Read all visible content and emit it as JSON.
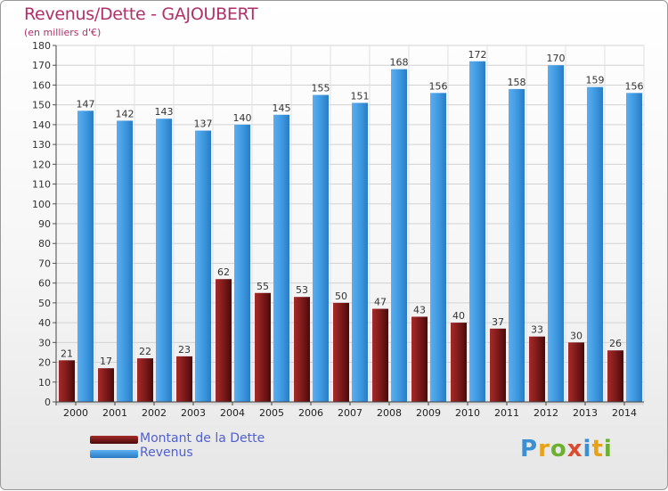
{
  "header": {
    "title": "Revenus/Dette - GAJOUBERT",
    "subtitle": "(en milliers d'€)"
  },
  "legend": {
    "dette_label": "Montant de la Dette",
    "revenus_label": "Revenus"
  },
  "brand": {
    "letters": [
      "P",
      "r",
      "o",
      "x",
      "i",
      "t",
      "i"
    ],
    "name": "Proxiti"
  },
  "colors": {
    "dette": "#7a1818",
    "revenus": "#3d97df",
    "title": "#b0306a",
    "legend_text": "#5060d0"
  },
  "chart_data": {
    "type": "bar",
    "categories": [
      "2000",
      "2001",
      "2002",
      "2003",
      "2004",
      "2005",
      "2006",
      "2007",
      "2008",
      "2009",
      "2010",
      "2011",
      "2012",
      "2013",
      "2014"
    ],
    "series": [
      {
        "name": "Montant de la Dette",
        "values": [
          21,
          17,
          22,
          23,
          62,
          55,
          53,
          50,
          47,
          43,
          40,
          37,
          33,
          30,
          26
        ]
      },
      {
        "name": "Revenus",
        "values": [
          147,
          142,
          143,
          137,
          140,
          145,
          155,
          151,
          168,
          156,
          172,
          158,
          170,
          159,
          156
        ]
      }
    ],
    "ylim": [
      0,
      180
    ],
    "yticks": [
      0,
      10,
      20,
      30,
      40,
      50,
      60,
      70,
      80,
      90,
      100,
      110,
      120,
      130,
      140,
      150,
      160,
      170,
      180
    ],
    "grid": true,
    "legend_position": "bottom-left"
  }
}
